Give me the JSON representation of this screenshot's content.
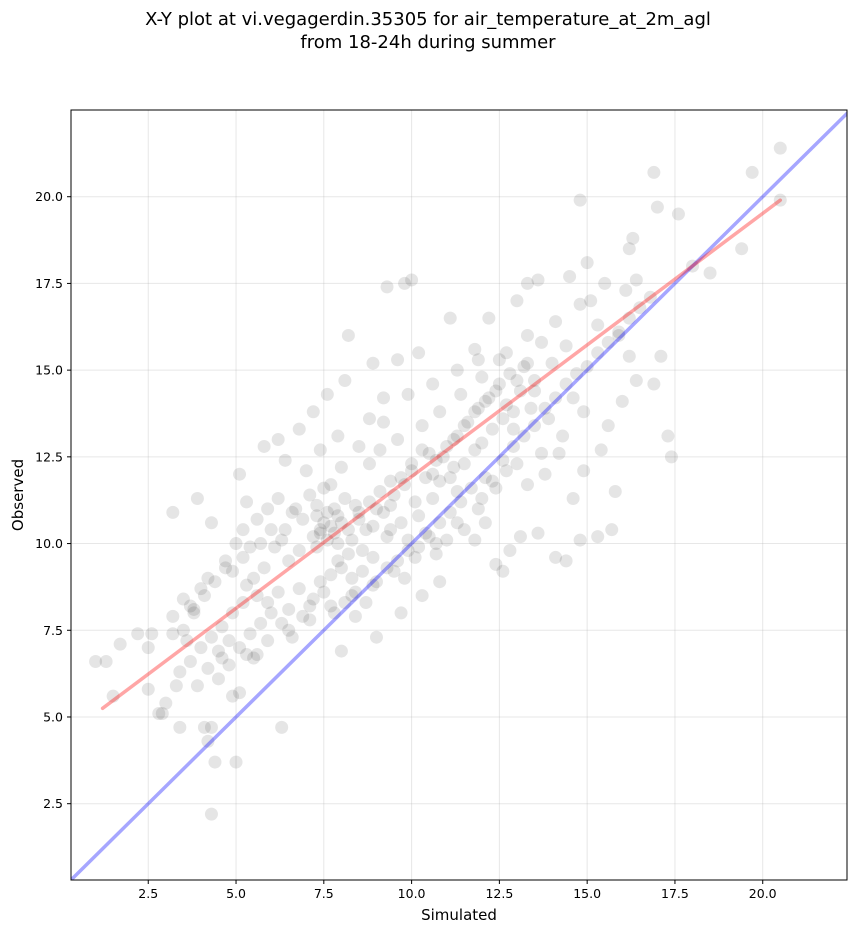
{
  "chart_data": {
    "type": "scatter",
    "title_lines": [
      "X-Y plot at vi.vegagerdin.35305 for air_temperature_at_2m_agl",
      "from 18-24h during summer"
    ],
    "xlabel": "Simulated",
    "ylabel": "Observed",
    "xlim": [
      0.3,
      22.4
    ],
    "ylim": [
      0.3,
      22.5
    ],
    "xticks": [
      2.5,
      5.0,
      7.5,
      10.0,
      12.5,
      15.0,
      17.5,
      20.0
    ],
    "yticks": [
      2.5,
      5.0,
      7.5,
      10.0,
      12.5,
      15.0,
      17.5,
      20.0
    ],
    "tick_labels": [
      "2.5",
      "5.0",
      "7.5",
      "10.0",
      "12.5",
      "15.0",
      "17.5",
      "20.0"
    ],
    "grid": true,
    "marker_color": "#000000",
    "marker_opacity": 0.1,
    "identity_line": {
      "color": "#0000ff",
      "opacity": 0.35
    },
    "fit_line": {
      "color": "#ff0000",
      "opacity": 0.35,
      "x": [
        1.2,
        20.5
      ],
      "y": [
        5.25,
        19.9
      ]
    },
    "points": [
      [
        1.0,
        6.6
      ],
      [
        1.3,
        6.6
      ],
      [
        1.5,
        5.6
      ],
      [
        1.7,
        7.1
      ],
      [
        2.2,
        7.4
      ],
      [
        2.5,
        7.0
      ],
      [
        2.6,
        7.4
      ],
      [
        2.5,
        5.8
      ],
      [
        2.8,
        5.1
      ],
      [
        2.9,
        5.1
      ],
      [
        3.0,
        5.4
      ],
      [
        3.2,
        7.4
      ],
      [
        3.3,
        5.9
      ],
      [
        3.4,
        4.7
      ],
      [
        3.6,
        7.2
      ],
      [
        3.8,
        8.1
      ],
      [
        3.9,
        5.9
      ],
      [
        3.9,
        11.3
      ],
      [
        4.1,
        4.7
      ],
      [
        4.2,
        4.3
      ],
      [
        4.3,
        2.2
      ],
      [
        4.3,
        4.7
      ],
      [
        4.4,
        3.7
      ],
      [
        4.5,
        6.1
      ],
      [
        4.3,
        10.6
      ],
      [
        4.6,
        6.7
      ],
      [
        4.8,
        7.2
      ],
      [
        4.9,
        5.6
      ],
      [
        5.0,
        3.7
      ],
      [
        5.1,
        5.7
      ],
      [
        3.2,
        10.9
      ],
      [
        3.5,
        8.4
      ],
      [
        3.7,
        8.2
      ],
      [
        4.0,
        8.7
      ],
      [
        4.2,
        9.0
      ],
      [
        4.7,
        9.3
      ],
      [
        5.5,
        6.7
      ],
      [
        5.6,
        6.8
      ],
      [
        6.3,
        4.7
      ],
      [
        5.3,
        11.2
      ],
      [
        5.1,
        12.0
      ],
      [
        5.8,
        12.8
      ],
      [
        6.2,
        13.0
      ],
      [
        6.4,
        12.4
      ],
      [
        6.8,
        13.3
      ],
      [
        7.2,
        13.8
      ],
      [
        7.6,
        14.3
      ],
      [
        8.1,
        14.7
      ],
      [
        8.2,
        16.0
      ],
      [
        9.3,
        17.4
      ],
      [
        9.8,
        17.5
      ],
      [
        10.0,
        17.6
      ],
      [
        8.9,
        15.2
      ],
      [
        9.6,
        15.3
      ],
      [
        10.2,
        15.5
      ],
      [
        9.2,
        14.2
      ],
      [
        8.8,
        13.6
      ],
      [
        7.9,
        13.1
      ],
      [
        7.4,
        12.7
      ],
      [
        7.0,
        12.1
      ],
      [
        8.0,
        6.9
      ],
      [
        8.4,
        7.9
      ],
      [
        9.0,
        7.3
      ],
      [
        9.7,
        8.0
      ],
      [
        9.8,
        9.0
      ],
      [
        10.3,
        8.5
      ],
      [
        10.7,
        9.7
      ],
      [
        11.0,
        10.1
      ],
      [
        11.5,
        10.4
      ],
      [
        10.8,
        8.9
      ],
      [
        11.8,
        10.1
      ],
      [
        12.1,
        10.6
      ],
      [
        12.4,
        9.4
      ],
      [
        12.6,
        9.2
      ],
      [
        12.8,
        9.8
      ],
      [
        13.1,
        10.2
      ],
      [
        13.6,
        10.3
      ],
      [
        14.1,
        9.6
      ],
      [
        14.4,
        9.5
      ],
      [
        14.8,
        10.1
      ],
      [
        15.3,
        10.2
      ],
      [
        15.7,
        10.4
      ],
      [
        15.8,
        11.5
      ],
      [
        14.6,
        11.3
      ],
      [
        14.9,
        12.1
      ],
      [
        15.4,
        12.7
      ],
      [
        15.6,
        13.4
      ],
      [
        16.0,
        14.1
      ],
      [
        16.4,
        14.7
      ],
      [
        16.9,
        14.6
      ],
      [
        17.1,
        15.4
      ],
      [
        17.3,
        13.1
      ],
      [
        17.4,
        12.5
      ],
      [
        16.2,
        15.4
      ],
      [
        15.9,
        16.0
      ],
      [
        16.1,
        17.3
      ],
      [
        16.4,
        17.6
      ],
      [
        16.8,
        17.1
      ],
      [
        16.9,
        20.7
      ],
      [
        17.0,
        19.7
      ],
      [
        17.6,
        19.5
      ],
      [
        18.0,
        18.0
      ],
      [
        18.5,
        17.8
      ],
      [
        19.4,
        18.5
      ],
      [
        19.7,
        20.7
      ],
      [
        20.5,
        19.9
      ],
      [
        20.5,
        21.4
      ],
      [
        14.5,
        17.7
      ],
      [
        14.8,
        19.9
      ],
      [
        15.1,
        17.0
      ],
      [
        15.5,
        17.5
      ],
      [
        15.0,
        18.1
      ],
      [
        16.3,
        18.8
      ],
      [
        16.2,
        18.5
      ],
      [
        13.3,
        17.5
      ],
      [
        13.6,
        17.6
      ],
      [
        13.0,
        17.0
      ],
      [
        12.2,
        16.5
      ],
      [
        11.1,
        16.5
      ],
      [
        11.8,
        15.6
      ],
      [
        12.5,
        15.3
      ],
      [
        13.2,
        15.1
      ],
      [
        13.7,
        15.8
      ],
      [
        14.1,
        16.4
      ],
      [
        14.4,
        15.7
      ],
      [
        14.8,
        16.9
      ],
      [
        15.3,
        16.3
      ],
      [
        14.0,
        15.2
      ],
      [
        13.5,
        14.7
      ],
      [
        14.6,
        14.2
      ],
      [
        12.9,
        13.3
      ],
      [
        13.9,
        13.6
      ],
      [
        14.2,
        12.6
      ],
      [
        13.8,
        12.0
      ],
      [
        13.3,
        11.7
      ],
      [
        12.7,
        12.1
      ],
      [
        12.1,
        11.9
      ],
      [
        11.3,
        11.5
      ],
      [
        10.8,
        11.8
      ],
      [
        10.4,
        10.3
      ],
      [
        9.9,
        10.1
      ],
      [
        9.4,
        10.4
      ],
      [
        8.6,
        9.2
      ],
      [
        8.2,
        9.7
      ],
      [
        7.9,
        9.5
      ],
      [
        7.4,
        10.4
      ],
      [
        7.6,
        10.9
      ],
      [
        7.2,
        10.2
      ],
      [
        6.8,
        9.8
      ],
      [
        6.5,
        9.5
      ],
      [
        6.3,
        10.1
      ],
      [
        6.0,
        10.4
      ],
      [
        5.7,
        10.0
      ],
      [
        5.4,
        9.9
      ],
      [
        5.2,
        9.6
      ],
      [
        4.9,
        9.2
      ],
      [
        5.3,
        8.8
      ],
      [
        5.6,
        8.5
      ],
      [
        5.9,
        8.3
      ],
      [
        6.2,
        8.6
      ],
      [
        6.5,
        8.1
      ],
      [
        6.8,
        8.7
      ],
      [
        7.1,
        8.2
      ],
      [
        7.4,
        8.9
      ],
      [
        7.7,
        9.1
      ],
      [
        8.0,
        9.3
      ],
      [
        8.3,
        9.0
      ],
      [
        8.6,
        9.8
      ],
      [
        8.9,
        10.5
      ],
      [
        9.2,
        10.9
      ],
      [
        9.5,
        11.4
      ],
      [
        9.8,
        11.7
      ],
      [
        10.1,
        11.2
      ],
      [
        10.4,
        11.9
      ],
      [
        10.7,
        12.4
      ],
      [
        11.0,
        12.8
      ],
      [
        11.3,
        13.1
      ],
      [
        11.6,
        13.5
      ],
      [
        11.9,
        13.9
      ],
      [
        12.2,
        14.2
      ],
      [
        12.5,
        14.6
      ],
      [
        12.8,
        14.9
      ],
      [
        13.1,
        14.4
      ],
      [
        13.4,
        13.9
      ],
      [
        12.6,
        13.6
      ],
      [
        12.0,
        12.9
      ],
      [
        11.5,
        12.3
      ],
      [
        11.1,
        11.9
      ],
      [
        10.6,
        11.3
      ],
      [
        10.2,
        10.8
      ],
      [
        9.7,
        10.6
      ],
      [
        9.3,
        10.2
      ],
      [
        8.9,
        9.6
      ],
      [
        8.5,
        10.9
      ],
      [
        8.1,
        11.3
      ],
      [
        7.7,
        11.7
      ],
      [
        7.3,
        11.1
      ],
      [
        6.9,
        10.7
      ],
      [
        6.6,
        10.9
      ],
      [
        6.2,
        11.3
      ],
      [
        5.9,
        11.0
      ],
      [
        5.6,
        10.7
      ],
      [
        5.2,
        10.4
      ],
      [
        5.0,
        10.0
      ],
      [
        4.7,
        9.5
      ],
      [
        4.4,
        8.9
      ],
      [
        4.1,
        8.5
      ],
      [
        3.8,
        8.0
      ],
      [
        3.5,
        7.5
      ],
      [
        3.2,
        7.9
      ],
      [
        7.8,
        10.3
      ],
      [
        7.5,
        10.6
      ],
      [
        8.3,
        10.1
      ],
      [
        8.7,
        10.4
      ],
      [
        7.3,
        9.9
      ],
      [
        7.9,
        10.8
      ],
      [
        8.4,
        11.1
      ],
      [
        9.0,
        11.0
      ],
      [
        9.4,
        11.8
      ],
      [
        10.0,
        12.1
      ],
      [
        10.5,
        12.6
      ],
      [
        11.2,
        12.2
      ],
      [
        11.8,
        12.7
      ],
      [
        12.3,
        13.3
      ],
      [
        12.9,
        13.8
      ],
      [
        13.5,
        14.4
      ],
      [
        8.8,
        12.3
      ],
      [
        9.1,
        12.7
      ],
      [
        9.6,
        13.0
      ],
      [
        10.3,
        13.4
      ],
      [
        10.8,
        13.8
      ],
      [
        11.4,
        14.3
      ],
      [
        12.0,
        14.8
      ],
      [
        12.7,
        15.5
      ],
      [
        13.3,
        16.0
      ],
      [
        9.9,
        14.3
      ],
      [
        10.6,
        14.6
      ],
      [
        11.3,
        15.0
      ],
      [
        11.9,
        15.3
      ],
      [
        9.2,
        13.5
      ],
      [
        8.5,
        12.8
      ],
      [
        8.0,
        12.2
      ],
      [
        7.5,
        11.6
      ],
      [
        7.1,
        11.4
      ],
      [
        6.7,
        11.0
      ],
      [
        6.4,
        10.4
      ],
      [
        6.1,
        9.9
      ],
      [
        5.8,
        9.3
      ],
      [
        5.5,
        9.0
      ],
      [
        5.2,
        8.3
      ],
      [
        4.9,
        8.0
      ],
      [
        4.6,
        7.6
      ],
      [
        4.3,
        7.3
      ],
      [
        4.0,
        7.0
      ],
      [
        3.7,
        6.6
      ],
      [
        3.4,
        6.3
      ],
      [
        4.2,
        6.4
      ],
      [
        4.5,
        6.9
      ],
      [
        4.8,
        6.5
      ],
      [
        5.1,
        7.0
      ],
      [
        5.4,
        7.4
      ],
      [
        5.7,
        7.7
      ],
      [
        6.0,
        8.0
      ],
      [
        6.3,
        7.7
      ],
      [
        6.6,
        7.3
      ],
      [
        6.9,
        7.9
      ],
      [
        7.2,
        8.4
      ],
      [
        7.5,
        8.6
      ],
      [
        7.8,
        8.0
      ],
      [
        8.1,
        8.3
      ],
      [
        8.4,
        8.6
      ],
      [
        8.7,
        8.3
      ],
      [
        9.0,
        8.9
      ],
      [
        9.3,
        9.3
      ],
      [
        9.6,
        9.5
      ],
      [
        9.9,
        9.8
      ],
      [
        10.2,
        9.9
      ],
      [
        10.5,
        10.2
      ],
      [
        10.8,
        10.6
      ],
      [
        11.1,
        10.9
      ],
      [
        11.4,
        11.2
      ],
      [
        11.7,
        11.6
      ],
      [
        12.0,
        11.3
      ],
      [
        12.3,
        11.8
      ],
      [
        12.6,
        12.4
      ],
      [
        12.9,
        12.8
      ],
      [
        13.2,
        13.1
      ],
      [
        13.5,
        13.4
      ],
      [
        13.8,
        13.9
      ],
      [
        14.1,
        14.2
      ],
      [
        14.4,
        14.6
      ],
      [
        14.7,
        14.9
      ],
      [
        15.0,
        15.1
      ],
      [
        15.3,
        15.5
      ],
      [
        15.6,
        15.8
      ],
      [
        15.9,
        16.1
      ],
      [
        16.2,
        16.5
      ],
      [
        16.5,
        16.8
      ],
      [
        14.9,
        13.8
      ],
      [
        14.3,
        13.1
      ],
      [
        13.7,
        12.6
      ],
      [
        13.0,
        12.3
      ],
      [
        12.4,
        11.6
      ],
      [
        11.9,
        11.0
      ],
      [
        11.3,
        10.6
      ],
      [
        10.7,
        10.0
      ],
      [
        10.1,
        9.6
      ],
      [
        9.5,
        9.2
      ],
      [
        8.9,
        8.8
      ],
      [
        8.3,
        8.5
      ],
      [
        7.7,
        8.2
      ],
      [
        7.1,
        7.8
      ],
      [
        6.5,
        7.5
      ],
      [
        5.9,
        7.2
      ],
      [
        5.3,
        6.8
      ],
      [
        7.6,
        10.1
      ],
      [
        7.7,
        10.5
      ],
      [
        7.4,
        10.3
      ],
      [
        7.9,
        10.0
      ],
      [
        8.0,
        10.6
      ],
      [
        7.3,
        10.8
      ],
      [
        7.8,
        11.0
      ],
      [
        8.2,
        10.4
      ],
      [
        8.5,
        10.7
      ],
      [
        8.8,
        11.2
      ],
      [
        9.1,
        11.5
      ],
      [
        9.4,
        11.1
      ],
      [
        9.7,
        11.9
      ],
      [
        10.0,
        12.3
      ],
      [
        10.3,
        12.7
      ],
      [
        10.6,
        12.0
      ],
      [
        10.9,
        12.5
      ],
      [
        11.2,
        13.0
      ],
      [
        11.5,
        13.4
      ],
      [
        11.8,
        13.8
      ],
      [
        12.1,
        14.1
      ],
      [
        12.4,
        14.4
      ],
      [
        12.7,
        14.0
      ],
      [
        13.0,
        14.7
      ],
      [
        13.3,
        15.2
      ]
    ]
  }
}
